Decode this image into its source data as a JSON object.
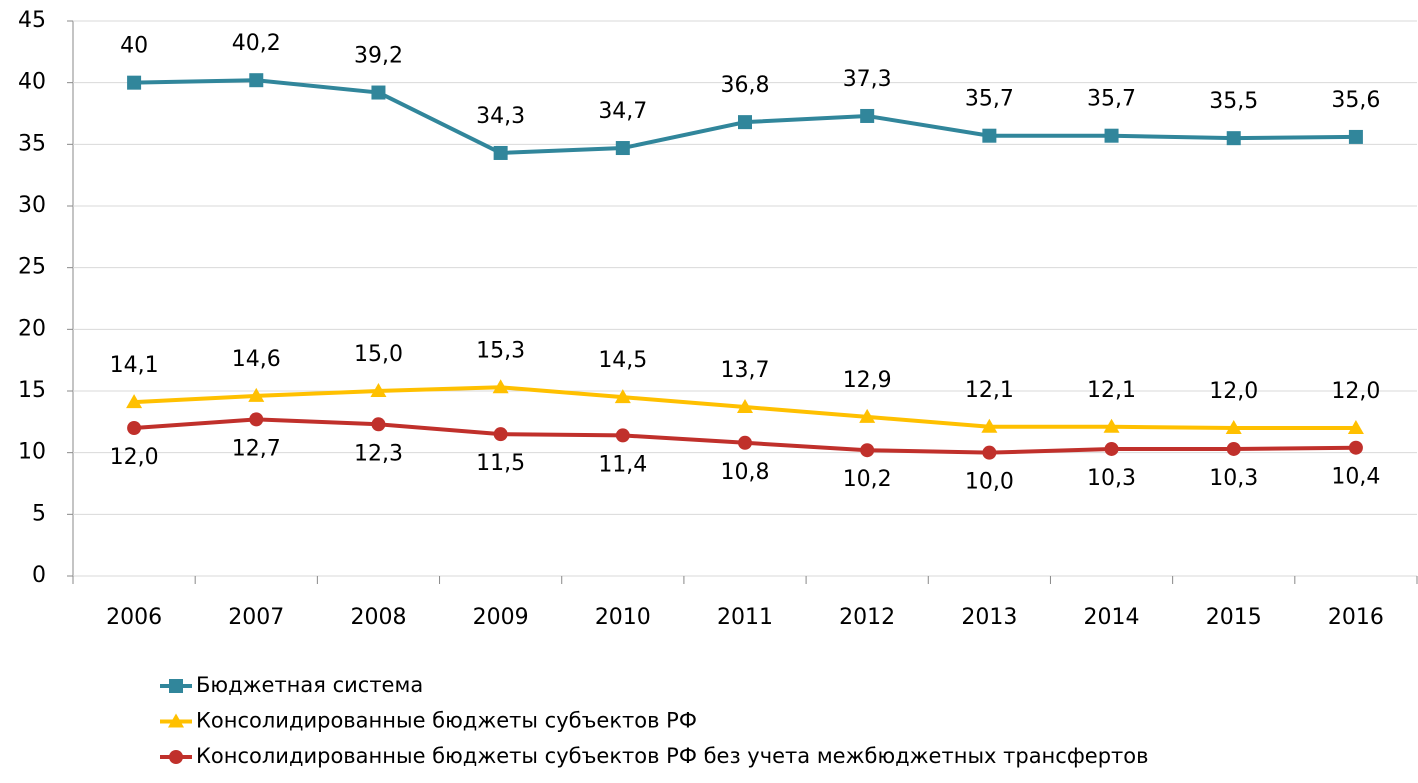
{
  "chart_data": {
    "type": "line",
    "categories": [
      "2006",
      "2007",
      "2008",
      "2009",
      "2010",
      "2011",
      "2012",
      "2013",
      "2014",
      "2015",
      "2016"
    ],
    "ylim": [
      0,
      45
    ],
    "yticks": [
      0,
      5,
      10,
      15,
      20,
      25,
      30,
      35,
      40,
      45
    ],
    "grid": true,
    "legend": "bottom",
    "series": [
      {
        "name": "Бюджетная система",
        "color": "#31869b",
        "marker": "square",
        "label_position": "above",
        "values": [
          40,
          40.2,
          39.2,
          34.3,
          34.7,
          36.8,
          37.3,
          35.7,
          35.7,
          35.5,
          35.6
        ],
        "value_labels": [
          "40",
          "40,2",
          "39,2",
          "34,3",
          "34,7",
          "36,8",
          "37,3",
          "35,7",
          "35,7",
          "35,5",
          "35,6"
        ]
      },
      {
        "name": "Консолидированные бюджеты субъектов РФ",
        "color": "#ffc000",
        "marker": "triangle",
        "label_position": "above",
        "values": [
          14.1,
          14.6,
          15.0,
          15.3,
          14.5,
          13.7,
          12.9,
          12.1,
          12.1,
          12.0,
          12.0
        ],
        "value_labels": [
          "14,1",
          "14,6",
          "15,0",
          "15,3",
          "14,5",
          "13,7",
          "12,9",
          "12,1",
          "12,1",
          "12,0",
          "12,0"
        ]
      },
      {
        "name": "Консолидированные бюджеты субъектов РФ без учета межбюджетных трансфертов",
        "color": "#c0302b",
        "marker": "circle",
        "label_position": "below",
        "values": [
          12.0,
          12.7,
          12.3,
          11.5,
          11.4,
          10.8,
          10.2,
          10.0,
          10.3,
          10.3,
          10.4
        ],
        "value_labels": [
          "12,0",
          "12,7",
          "12,3",
          "11,5",
          "11,4",
          "10,8",
          "10,2",
          "10,0",
          "10,3",
          "10,3",
          "10,4"
        ]
      }
    ]
  }
}
